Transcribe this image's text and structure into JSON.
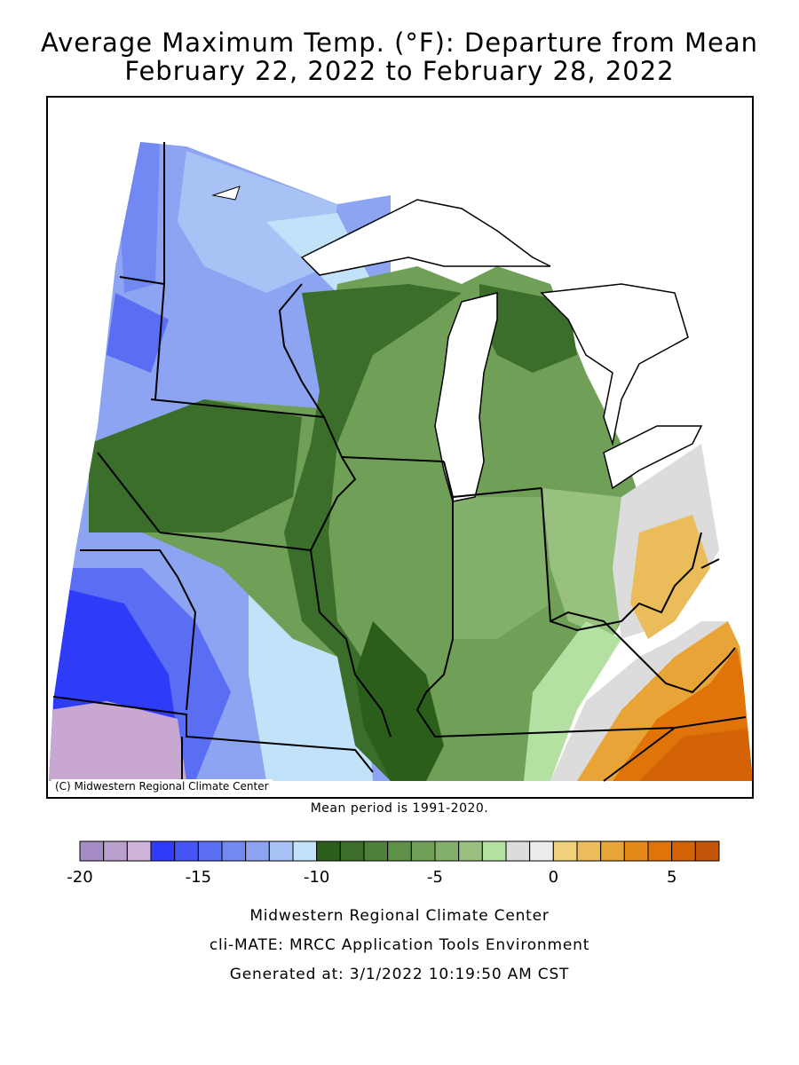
{
  "title_line1": "Average Maximum Temp. (°F): Departure from Mean",
  "title_line2": "February 22, 2022 to February 28, 2022",
  "copyright": "(C) Midwestern Regional Climate Center",
  "mean_period": "Mean period is 1991-2020.",
  "legend": {
    "colors": [
      "#a58cc4",
      "#b9a0cc",
      "#d0b3d8",
      "#2e3cf8",
      "#4656f6",
      "#5a6ef4",
      "#7288f2",
      "#8ca4f2",
      "#a8c2f6",
      "#c2e2fa",
      "#2a5e1a",
      "#3a6e2a",
      "#4d8038",
      "#5e9046",
      "#70a058",
      "#82b06a",
      "#98c07e",
      "#b4e0a2",
      "#dcdcdc",
      "#ececec",
      "#f0d07a",
      "#ebbd5a",
      "#e8a436",
      "#e48a18",
      "#e07408",
      "#d46206",
      "#c05408"
    ],
    "tick_labels": [
      "-20",
      "-15",
      "-10",
      "-5",
      "0",
      "5"
    ],
    "min": -20,
    "max": 7
  },
  "footer": {
    "org": "Midwestern Regional Climate Center",
    "tool": "cli-MATE: MRCC Application Tools Environment",
    "generated": "Generated at: 3/1/2022 10:19:50 AM CST"
  },
  "palette": {
    "lake_fill": "#ffffff",
    "outline": "#000000",
    "pink_region": "#c8a8d0"
  }
}
